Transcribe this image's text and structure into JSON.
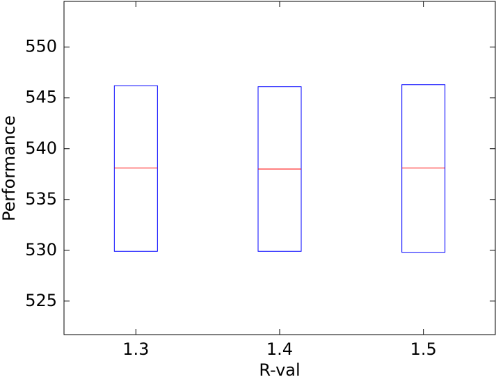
{
  "chart_data": {
    "type": "box",
    "x_label": "R-val",
    "y_label": "Performance",
    "categories": [
      "1.3",
      "1.4",
      "1.5"
    ],
    "q1": [
      529.9,
      529.9,
      529.8
    ],
    "median": [
      538.1,
      538.0,
      538.1
    ],
    "q3": [
      546.2,
      546.1,
      546.3
    ],
    "box_color": "#0000ff",
    "median_color": "#ff0000",
    "ylim": [
      521.7,
      554.5
    ],
    "yticks": [
      525,
      530,
      535,
      540,
      545,
      550
    ]
  }
}
